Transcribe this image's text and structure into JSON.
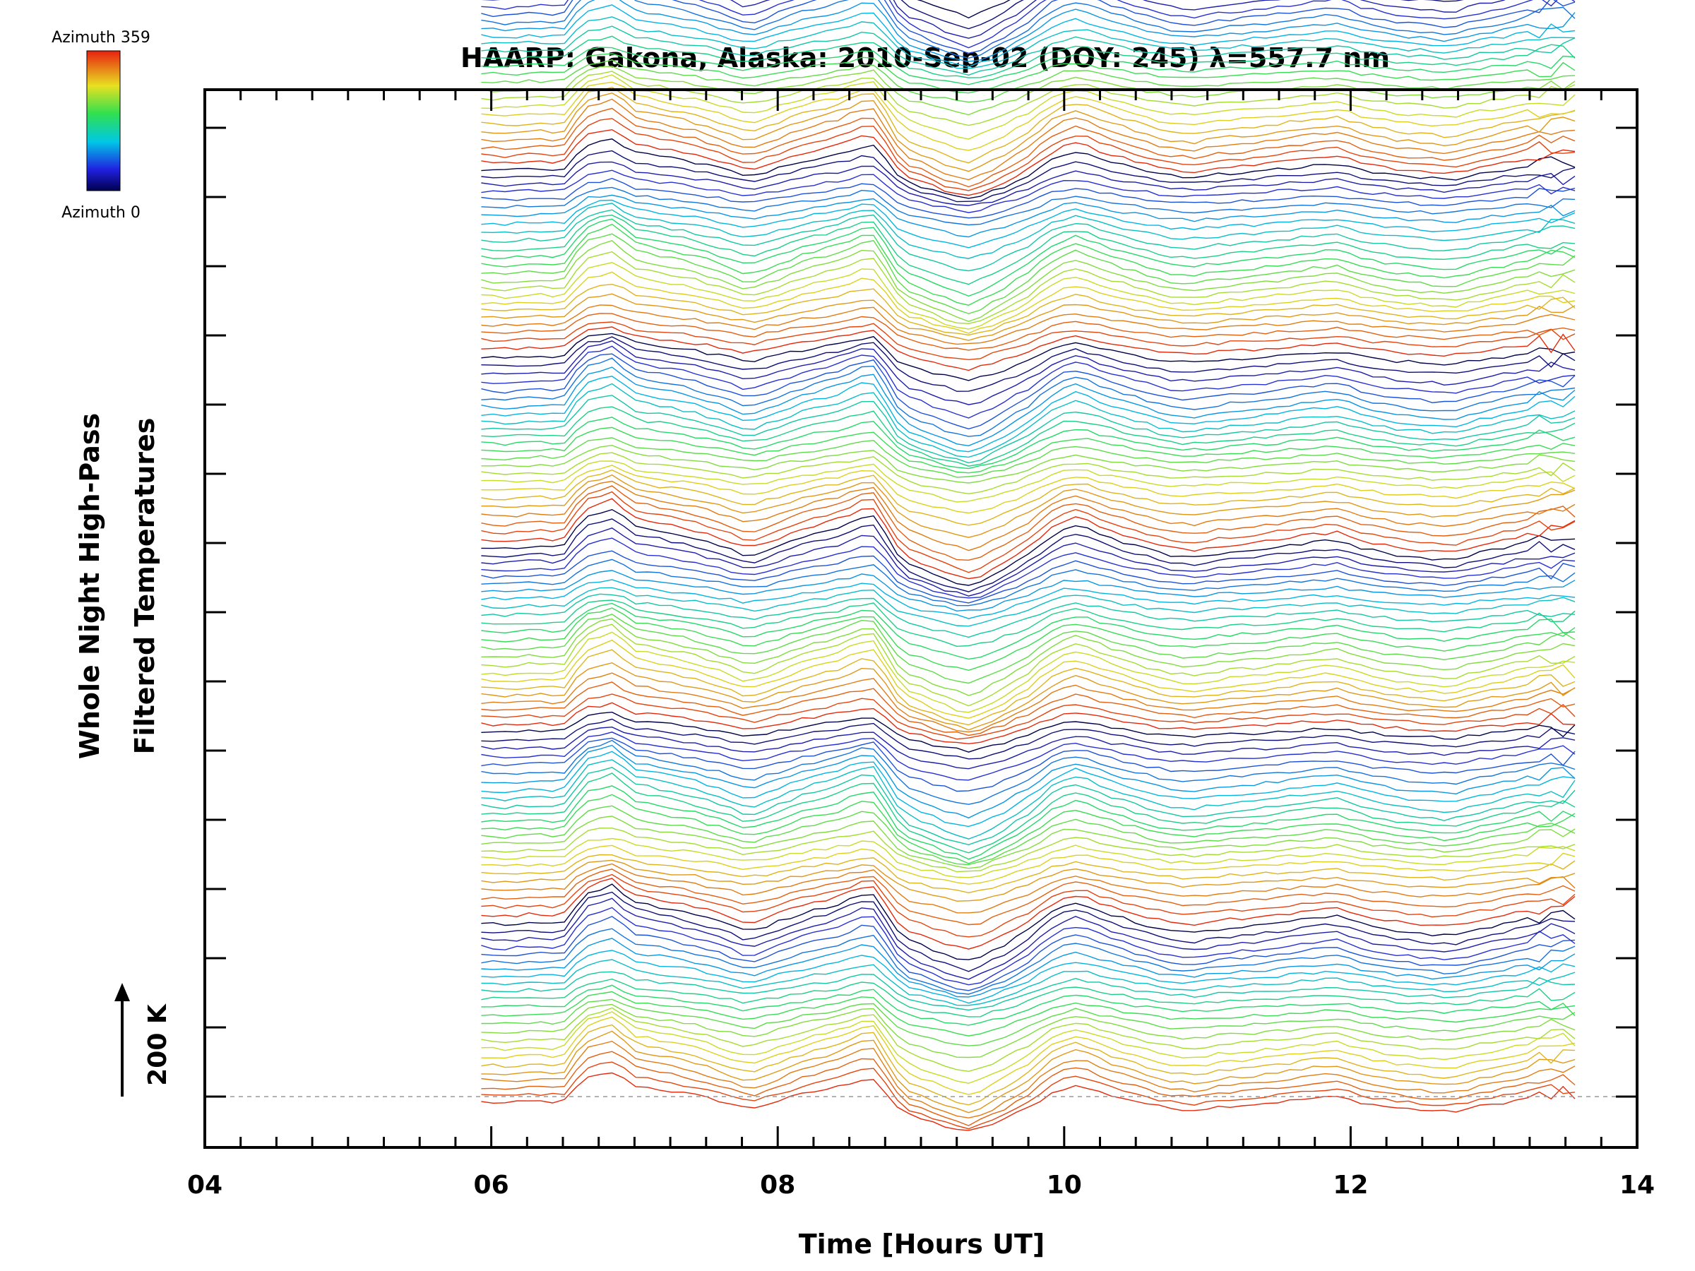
{
  "chart_data": {
    "type": "line",
    "title": "HAARP: Gakona,  Alaska: 2010-Sep-02 (DOY: 245) λ=557.7 nm",
    "xlabel": "Time [Hours UT]",
    "ylabel_line1": "Whole Night High-Pass",
    "ylabel_line2": "Filtered Temperatures",
    "xlim": [
      4,
      14
    ],
    "x_ticks": [
      "04",
      "06",
      "08",
      "10",
      "12",
      "14"
    ],
    "x_tick_values": [
      4,
      6,
      8,
      10,
      12,
      14
    ],
    "x_minor_step": 0.25,
    "y_major_ticks": 15,
    "scale_bar_label": "200 K",
    "colorbar": {
      "top_label": "Azimuth 359",
      "bottom_label": "Azimuth 0",
      "range": [
        0,
        359
      ]
    },
    "series_count": 144,
    "series_offset_K": 15,
    "x_start": 5.93,
    "x_end": 13.62,
    "sample_step_hours": 0.083,
    "base_profile": {
      "x": [
        5.93,
        6.1,
        6.3,
        6.5,
        6.65,
        6.85,
        7.0,
        7.2,
        7.4,
        7.6,
        7.8,
        8.0,
        8.2,
        8.4,
        8.55,
        8.65,
        8.72,
        8.8,
        8.9,
        9.05,
        9.2,
        9.35,
        9.55,
        9.75,
        9.95,
        10.1,
        10.3,
        10.5,
        10.7,
        10.9,
        11.1,
        11.3,
        11.5,
        11.7,
        11.9,
        12.1,
        12.3,
        12.5,
        12.7,
        12.9,
        13.1,
        13.3,
        13.45,
        13.62
      ],
      "y": [
        -12,
        -15,
        -10,
        -13,
        40,
        55,
        25,
        15,
        5,
        -10,
        -28,
        -10,
        8,
        20,
        35,
        45,
        25,
        -15,
        -40,
        -55,
        -70,
        -80,
        -55,
        -25,
        15,
        25,
        5,
        -10,
        -25,
        -30,
        -22,
        -18,
        -12,
        -5,
        0,
        -15,
        -25,
        -30,
        -35,
        -22,
        -12,
        0,
        2,
        8
      ]
    },
    "grid": false,
    "legend": "colorbar-top-left"
  }
}
